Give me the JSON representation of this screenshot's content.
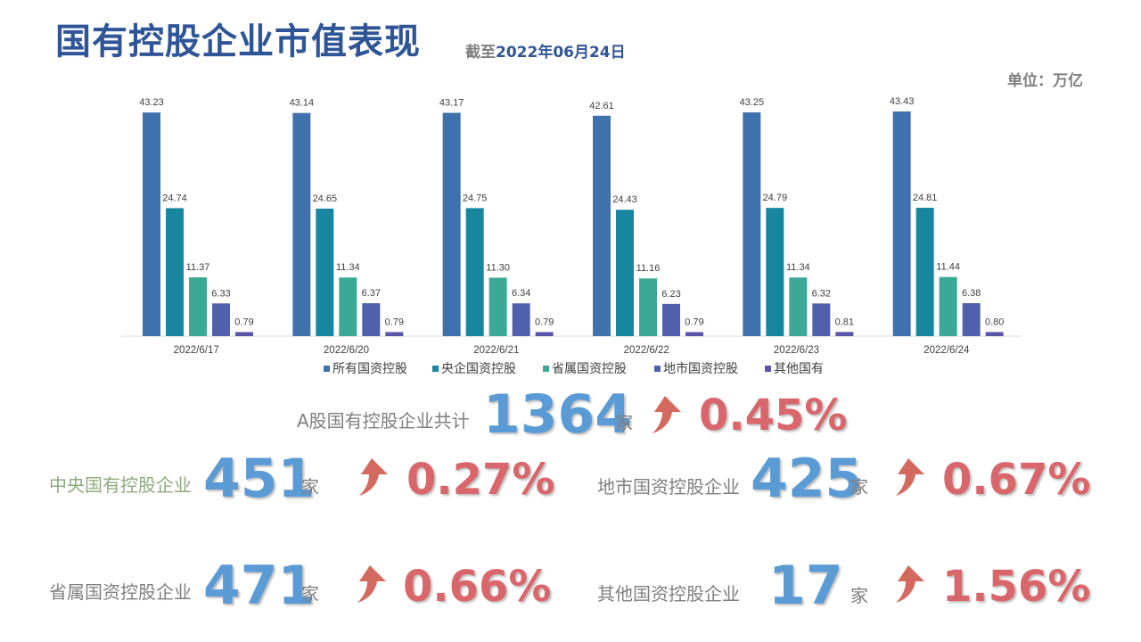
{
  "header": {
    "title": "国有控股企业市值表现",
    "date_prefix": "截至",
    "date_value": "2022年06月24日",
    "unit": "单位：万亿"
  },
  "colors": {
    "title": "#2f5597",
    "series": [
      "#3f72ad",
      "#17869e",
      "#3ba995",
      "#5060ac",
      "#5b55a8"
    ],
    "big_number": "#5b9bd5",
    "percent": "#d9666a",
    "arrow": "#d46a5f"
  },
  "chart_data": {
    "type": "bar",
    "categories": [
      "2022/6/17",
      "2022/6/20",
      "2022/6/21",
      "2022/6/22",
      "2022/6/23",
      "2022/6/24"
    ],
    "series": [
      {
        "name": "所有国资控股",
        "values": [
          43.23,
          43.14,
          43.17,
          42.61,
          43.25,
          43.43
        ],
        "labels": [
          "43.23",
          "43.14",
          "43.17",
          "42.61",
          "43.25",
          "43.43"
        ]
      },
      {
        "name": "央企国资控股",
        "values": [
          24.74,
          24.65,
          24.75,
          24.43,
          24.79,
          24.81
        ],
        "labels": [
          "24.74",
          "24.65",
          "24.75",
          "24.43",
          "24.79",
          "24.81"
        ]
      },
      {
        "name": "省属国资控股",
        "values": [
          11.37,
          11.34,
          11.3,
          11.16,
          11.34,
          11.44
        ],
        "labels": [
          "11.37",
          "11.34",
          "11.30",
          "11.16",
          "11.34",
          "11.44"
        ]
      },
      {
        "name": "地市国资控股",
        "values": [
          6.33,
          6.37,
          6.34,
          6.23,
          6.32,
          6.38
        ],
        "labels": [
          "6.33",
          "6.37",
          "6.34",
          "6.23",
          "6.32",
          "6.38"
        ]
      },
      {
        "name": "其他国有",
        "values": [
          0.79,
          0.79,
          0.79,
          0.79,
          0.81,
          0.8
        ],
        "labels": [
          "0.79",
          "0.79",
          "0.79",
          "0.79",
          "0.81",
          "0.80"
        ]
      }
    ],
    "ylim": [
      0,
      45
    ],
    "grid": false,
    "legend": "bottom"
  },
  "stats": {
    "total": {
      "label": "A股国有控股企业共计",
      "count": "1364",
      "unit": "家",
      "change": "0.45%"
    },
    "central": {
      "label": "中央国有控股企业",
      "count": "451",
      "unit": "家",
      "change": "0.27%"
    },
    "city": {
      "label": "地市国资控股企业",
      "count": "425",
      "unit": "家",
      "change": "0.67%"
    },
    "province": {
      "label": "省属国资控股企业",
      "count": "471",
      "unit": "家",
      "change": "0.66%"
    },
    "other": {
      "label": "其他国资控股企业",
      "count": "17",
      "unit": "家",
      "change": "1.56%"
    }
  }
}
